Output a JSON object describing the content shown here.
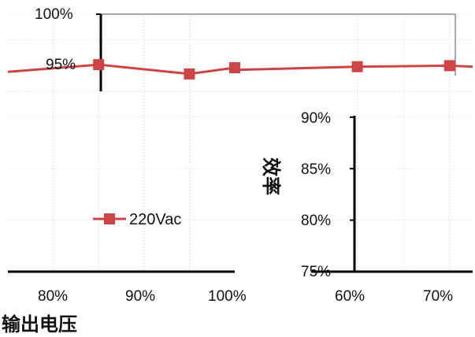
{
  "chart_data": {
    "type": "line",
    "xlabel": "输出电压",
    "ylabel": "效率",
    "x_ticks": [
      "80%",
      "90%",
      "100%",
      "60%",
      "70%"
    ],
    "y_ticks": [
      "100%",
      "95%",
      "90%",
      "85%",
      "80%",
      "75%"
    ],
    "series": [
      {
        "name": "220Vac",
        "color": "#cc4444",
        "points": [
          {
            "x": "85%",
            "y": 0.951
          },
          {
            "x": "95%",
            "y": 0.942
          },
          {
            "x": "100%",
            "y": 0.948
          },
          {
            "x": "60%",
            "y": 0.949
          },
          {
            "x": "70%",
            "y": 0.95
          }
        ]
      }
    ],
    "legend_position": "lower-left",
    "grid": true
  }
}
